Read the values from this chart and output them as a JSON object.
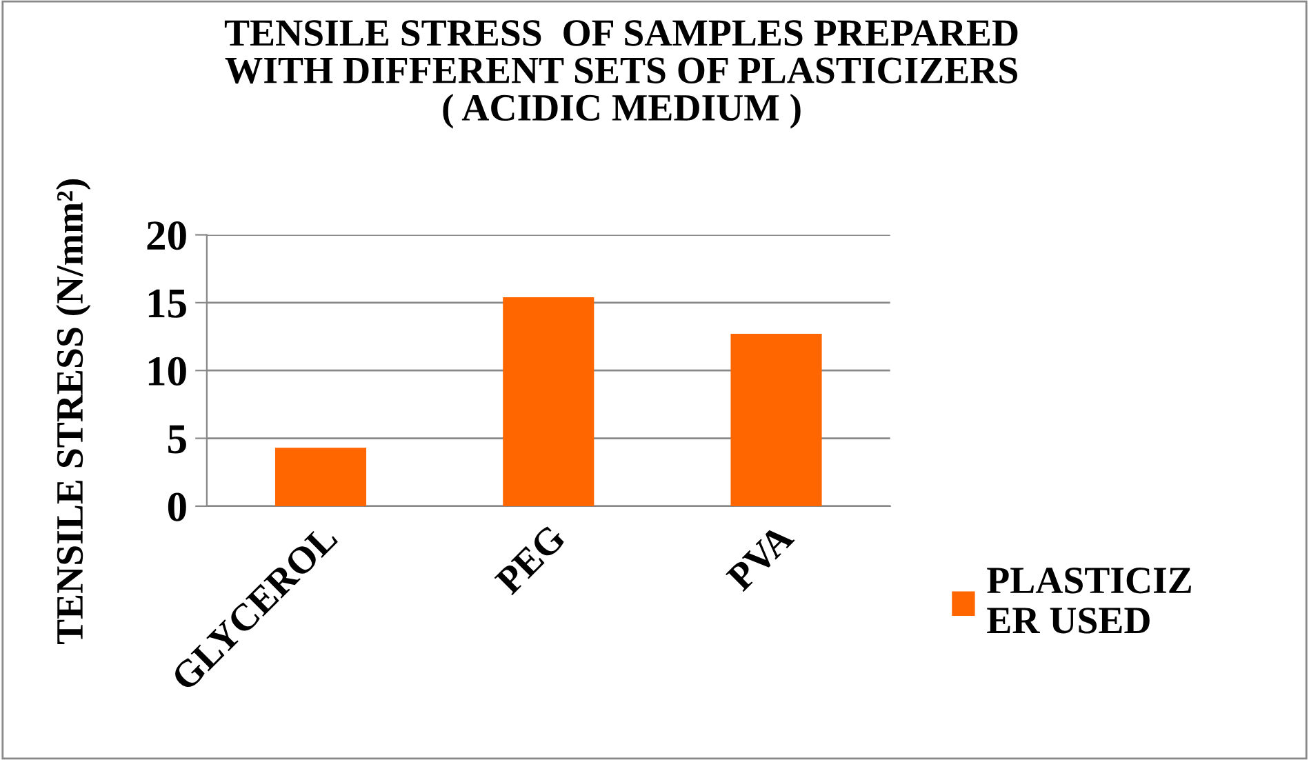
{
  "chart_data": {
    "type": "bar",
    "title": "TENSILE STRESS  OF SAMPLES PREPARED\nWITH DIFFERENT SETS OF PLASTICIZERS\n( ACIDIC MEDIUM )",
    "ylabel": "TENSILE STRESS (N/mm²)",
    "categories": [
      "GLYCEROL",
      "PEG",
      "PVA"
    ],
    "series": [
      {
        "name": "PLASTICIZ\nER USED",
        "color": "#ff6600",
        "values": [
          4.3,
          15.4,
          12.7
        ]
      }
    ],
    "ylim": [
      0,
      20
    ],
    "yticks": [
      0,
      5,
      10,
      15,
      20
    ],
    "grid": "y",
    "legend": "right"
  }
}
